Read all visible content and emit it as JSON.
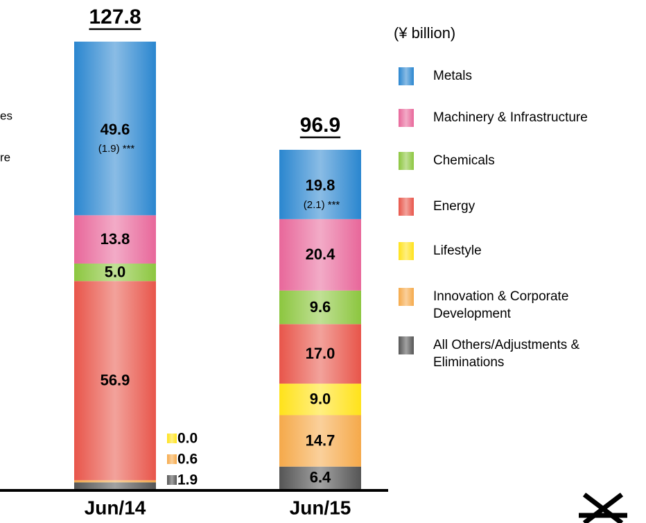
{
  "chart_data": {
    "type": "bar",
    "stacked": true,
    "unit_label": "(¥ billion)",
    "categories": [
      "Jun/14",
      "Jun/15"
    ],
    "totals": [
      127.8,
      96.9
    ],
    "series": [
      {
        "name": "Metals",
        "color": "#2a86cf",
        "values": [
          49.6,
          19.8
        ],
        "value_labels": [
          "49.6",
          "19.8"
        ],
        "notes": [
          "(1.9) ***",
          "(2.1) ***"
        ]
      },
      {
        "name": "Machinery & Infrastructure",
        "color": "#e8679a",
        "values": [
          13.8,
          20.4
        ],
        "value_labels": [
          "13.8",
          "20.4"
        ]
      },
      {
        "name": "Chemicals",
        "color": "#8cc63f",
        "values": [
          5.0,
          9.6
        ],
        "value_labels": [
          "5.0",
          "9.6"
        ]
      },
      {
        "name": "Energy",
        "color": "#e8554a",
        "values": [
          56.9,
          17.0
        ],
        "value_labels": [
          "56.9",
          "17.0"
        ]
      },
      {
        "name": "Lifestyle",
        "color": "#ffe21a",
        "values": [
          0.0,
          9.0
        ],
        "value_labels": [
          "0.0",
          "9.0"
        ]
      },
      {
        "name": "Innovation & Corporate Development",
        "color": "#f5a94a",
        "values": [
          0.6,
          14.7
        ],
        "value_labels": [
          "0.6",
          "14.7"
        ]
      },
      {
        "name": "All Others/Adjustments & Eliminations",
        "color": "#555555",
        "values": [
          1.9,
          6.4
        ],
        "value_labels": [
          "1.9",
          "6.4"
        ]
      }
    ],
    "fragments": [
      "es",
      "re"
    ]
  }
}
